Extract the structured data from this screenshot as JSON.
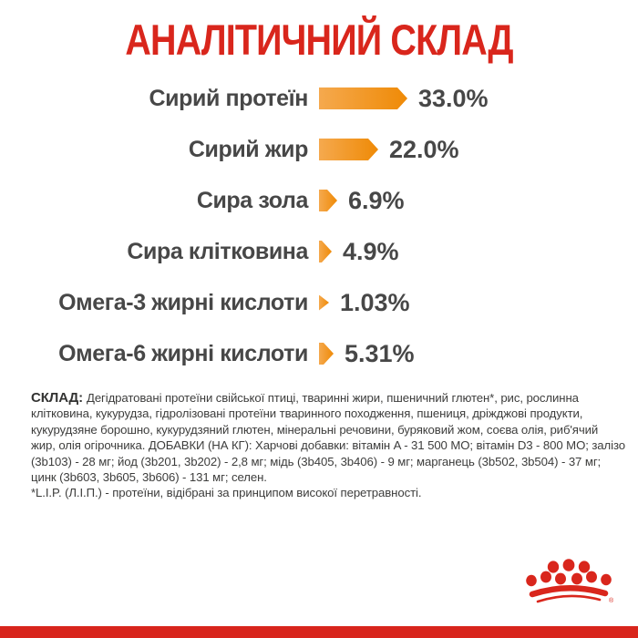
{
  "page": {
    "title": "АНАЛІТИЧНИЙ СКЛАД"
  },
  "chart_data": {
    "type": "bar",
    "orientation": "horizontal",
    "title": "АНАЛІТИЧНИЙ СКЛАД",
    "unit": "%",
    "categories": [
      "Сирий протеїн",
      "Сирий жир",
      "Сира зола",
      "Сира клітковина",
      "Омега-3 жирні кислоти",
      "Омега-6 жирні кислоти"
    ],
    "values": [
      33.0,
      22.0,
      6.9,
      4.9,
      1.03,
      5.31
    ],
    "value_labels": [
      "33.0%",
      "22.0%",
      "6.9%",
      "4.9%",
      "1.03%",
      "5.31%"
    ],
    "legend": "none",
    "grid": false,
    "bar_color_start": "#F5A94E",
    "bar_color_end": "#EF8A06"
  },
  "composition": {
    "label": "СКЛАД:",
    "lines": [
      "Дегідратовані протеїни свійської птиці, тваринні жири, пшеничний глютен*, рис, рослинна",
      "клітковина, кукурудза, гідролізовані протеїни тваринного походження, пшениця, дріжджові продукти,",
      "кукурудзяне борошно, кукурудзяний глютен, мінеральні речовини, буряковий жом, соєва олія, риб'ячий",
      "жир, олія огірочника. ДОБАВКИ (НА КГ): Харчові добавки: вітамін A - 31 500 МО; вітамін D3 - 800 МО; залізо",
      "(3b103) - 28 мг; йод (3b201, 3b202) - 2,8 мг; мідь (3b405, 3b406) - 9 мг; марганець (3b502, 3b504) - 37 мг;",
      "цинк (3b603, 3b605, 3b606) - 131 мг; селен.",
      "*L.I.P. (Л.І.П.) - протеїни, відібрані за принципом високої перетравності."
    ]
  },
  "footer": {
    "registered": "®"
  },
  "colors": {
    "brand_red": "#D9261C",
    "text_dark": "#474747",
    "bar_gradient_start": "#F5A94E",
    "bar_gradient_end": "#EF8A06"
  }
}
